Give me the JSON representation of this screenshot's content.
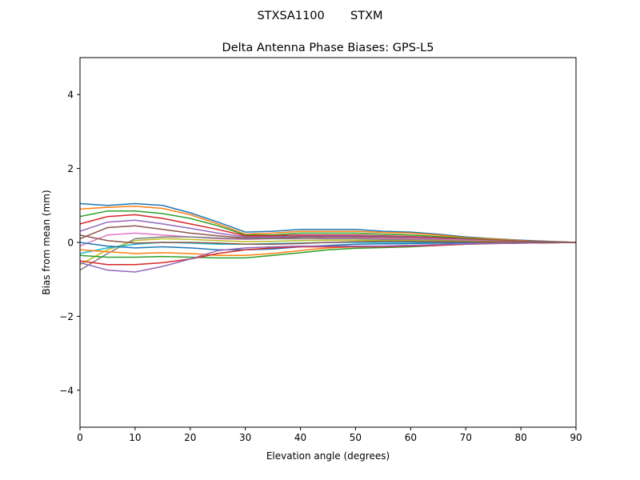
{
  "chart_data": {
    "type": "line",
    "suptitle": "STXSA1100       STXM",
    "title": "Delta Antenna Phase Biases: GPS-L5",
    "xlabel": "Elevation angle (degrees)",
    "ylabel": "Bias from mean (mm)",
    "xlim": [
      0,
      90
    ],
    "ylim": [
      -5,
      5
    ],
    "xticks": [
      0,
      10,
      20,
      30,
      40,
      50,
      60,
      70,
      80,
      90
    ],
    "yticks": [
      -4,
      -2,
      0,
      2,
      4
    ],
    "ytick_labels": [
      "−4",
      "−2",
      "0",
      "2",
      "4"
    ],
    "grid": false,
    "colors": [
      "#1f77b4",
      "#ff7f0e",
      "#2ca02c",
      "#d62728",
      "#9467bd",
      "#8c564b",
      "#e377c2",
      "#7f7f7f",
      "#bcbd22",
      "#17becf"
    ],
    "x": [
      0,
      5,
      10,
      15,
      20,
      25,
      30,
      35,
      40,
      45,
      50,
      55,
      60,
      65,
      70,
      75,
      80,
      85,
      90
    ],
    "series": [
      {
        "values": [
          1.05,
          1.0,
          1.05,
          1.0,
          0.8,
          0.55,
          0.28,
          0.3,
          0.35,
          0.35,
          0.35,
          0.3,
          0.28,
          0.22,
          0.15,
          0.1,
          0.06,
          0.03,
          0
        ]
      },
      {
        "values": [
          0.9,
          0.95,
          0.98,
          0.92,
          0.75,
          0.5,
          0.22,
          0.25,
          0.3,
          0.3,
          0.3,
          0.27,
          0.25,
          0.2,
          0.13,
          0.09,
          0.05,
          0.02,
          0
        ]
      },
      {
        "values": [
          0.7,
          0.85,
          0.85,
          0.78,
          0.65,
          0.45,
          0.2,
          0.2,
          0.25,
          0.25,
          0.25,
          0.22,
          0.2,
          0.16,
          0.11,
          0.07,
          0.04,
          0.02,
          0
        ]
      },
      {
        "values": [
          0.5,
          0.7,
          0.75,
          0.65,
          0.5,
          0.35,
          0.18,
          0.18,
          0.2,
          0.2,
          0.2,
          0.18,
          0.16,
          0.13,
          0.09,
          0.06,
          0.04,
          0.02,
          0
        ]
      },
      {
        "values": [
          0.3,
          0.55,
          0.6,
          0.5,
          0.38,
          0.25,
          0.15,
          0.15,
          0.17,
          0.18,
          0.18,
          0.16,
          0.14,
          0.11,
          0.08,
          0.05,
          0.03,
          0.01,
          0
        ]
      },
      {
        "values": [
          0.1,
          0.4,
          0.45,
          0.35,
          0.25,
          0.18,
          0.12,
          0.12,
          0.14,
          0.15,
          0.15,
          0.14,
          0.12,
          0.1,
          0.07,
          0.05,
          0.03,
          0.01,
          0
        ]
      },
      {
        "values": [
          -0.1,
          0.2,
          0.25,
          0.2,
          0.15,
          0.1,
          0.08,
          0.1,
          0.1,
          0.12,
          0.12,
          0.11,
          0.1,
          0.08,
          0.06,
          0.04,
          0.02,
          0.01,
          0
        ]
      },
      {
        "values": [
          -0.75,
          -0.3,
          0.1,
          0.15,
          0.15,
          0.12,
          0.1,
          0.1,
          0.1,
          0.1,
          0.1,
          0.08,
          0.07,
          0.06,
          0.04,
          0.03,
          0.02,
          0.01,
          0
        ]
      },
      {
        "values": [
          -0.6,
          -0.2,
          0.05,
          0.1,
          0.08,
          0.05,
          0.02,
          0.03,
          0.05,
          0.06,
          0.06,
          0.05,
          0.05,
          0.04,
          0.03,
          0.02,
          0.01,
          0,
          0
        ]
      },
      {
        "values": [
          -0.3,
          -0.15,
          -0.05,
          0,
          -0.02,
          -0.05,
          -0.05,
          -0.03,
          -0.02,
          0,
          0,
          0,
          0,
          0,
          0,
          0,
          0,
          0,
          0
        ]
      },
      {
        "values": [
          0,
          -0.1,
          -0.15,
          -0.12,
          -0.15,
          -0.2,
          -0.2,
          -0.18,
          -0.12,
          -0.08,
          -0.05,
          -0.04,
          -0.03,
          -0.02,
          -0.02,
          -0.01,
          0,
          0,
          0
        ]
      },
      {
        "values": [
          -0.2,
          -0.25,
          -0.3,
          -0.28,
          -0.3,
          -0.35,
          -0.35,
          -0.3,
          -0.22,
          -0.15,
          -0.12,
          -0.1,
          -0.08,
          -0.06,
          -0.04,
          -0.02,
          -0.01,
          0,
          0
        ]
      },
      {
        "values": [
          -0.35,
          -0.4,
          -0.4,
          -0.38,
          -0.4,
          -0.42,
          -0.42,
          -0.35,
          -0.28,
          -0.2,
          -0.16,
          -0.14,
          -0.12,
          -0.08,
          -0.05,
          -0.03,
          -0.02,
          -0.01,
          0
        ]
      },
      {
        "values": [
          -0.5,
          -0.6,
          -0.6,
          -0.55,
          -0.45,
          -0.3,
          -0.2,
          -0.15,
          -0.12,
          -0.12,
          -0.12,
          -0.12,
          -0.1,
          -0.08,
          -0.05,
          -0.03,
          -0.02,
          -0.01,
          0
        ]
      },
      {
        "values": [
          -0.55,
          -0.75,
          -0.8,
          -0.65,
          -0.45,
          -0.22,
          -0.15,
          -0.12,
          -0.1,
          -0.1,
          -0.1,
          -0.1,
          -0.08,
          -0.06,
          -0.04,
          -0.03,
          -0.02,
          -0.01,
          0
        ]
      },
      {
        "values": [
          0.2,
          0.05,
          -0.02,
          0,
          0,
          -0.02,
          -0.05,
          -0.05,
          -0.03,
          0,
          0.02,
          0.03,
          0.03,
          0.02,
          0.02,
          0.01,
          0.01,
          0,
          0
        ]
      }
    ]
  }
}
